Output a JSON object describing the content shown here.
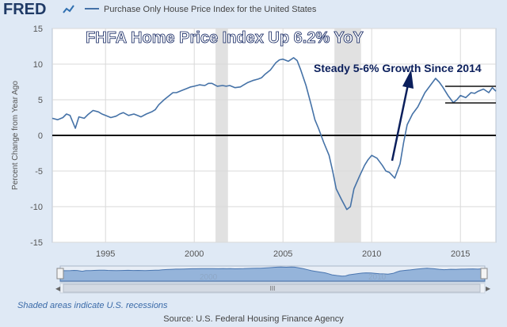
{
  "header": {
    "logo": "FRED",
    "series_label": "Purchase Only House Price Index for the United States"
  },
  "annotations": {
    "headline": "FHFA Home Price Index Up 6.2% YoY",
    "growth_note": "Steady 5-6% Growth Since 2014"
  },
  "footer": {
    "recession_note": "Shaded areas indicate U.S. recessions",
    "source": "Source: U.S. Federal Housing Finance Agency"
  },
  "navigator": {
    "labels": [
      "2000",
      "2010"
    ],
    "handle_left": "◁",
    "handle_right": "▷",
    "scroll_left": "◀",
    "scroll_right": "▶",
    "scroll_grip": "III"
  },
  "colors": {
    "series": "#4572a7",
    "recession": "#e1e1e1",
    "arrow": "#0b1f5c",
    "headline": "#ffffff"
  },
  "chart_data": {
    "type": "line",
    "title": "",
    "xlabel": "",
    "ylabel": "Percent Change from Year Ago",
    "xlim": [
      1992.0,
      2017.0
    ],
    "ylim": [
      -15,
      15
    ],
    "yticks": [
      15,
      10,
      5,
      0,
      -5,
      -10,
      -15
    ],
    "xticks": [
      1995,
      2000,
      2005,
      2010,
      2015
    ],
    "recessions": [
      [
        2001.2,
        2001.9
      ],
      [
        2007.9,
        2009.4
      ]
    ],
    "series": [
      {
        "x": [
          1992.0,
          1992.3,
          1992.6,
          1992.8,
          1993.0,
          1993.3,
          1993.5,
          1993.8,
          1994.0,
          1994.3,
          1994.6,
          1994.8,
          1995.0,
          1995.3,
          1995.6,
          1995.8,
          1996.0,
          1996.3,
          1996.6,
          1996.8,
          1997.0,
          1997.3,
          1997.6,
          1997.8,
          1998.0,
          1998.3,
          1998.6,
          1998.8,
          1999.0,
          1999.3,
          1999.6,
          1999.8,
          2000.0,
          2000.3,
          2000.6,
          2000.8,
          2001.0,
          2001.3,
          2001.6,
          2001.8,
          2002.0,
          2002.3,
          2002.6,
          2002.8,
          2003.0,
          2003.3,
          2003.6,
          2003.8,
          2004.0,
          2004.3,
          2004.6,
          2004.8,
          2005.0,
          2005.3,
          2005.6,
          2005.8,
          2006.0,
          2006.3,
          2006.6,
          2006.8,
          2007.0,
          2007.3,
          2007.6,
          2007.8,
          2008.0,
          2008.3,
          2008.6,
          2008.8,
          2009.0,
          2009.3,
          2009.6,
          2009.8,
          2010.0,
          2010.3,
          2010.6,
          2010.8,
          2011.0,
          2011.3,
          2011.6,
          2011.8,
          2012.0,
          2012.3,
          2012.6,
          2012.8,
          2013.0,
          2013.3,
          2013.6,
          2013.8,
          2014.0,
          2014.3,
          2014.6,
          2014.8,
          2015.0,
          2015.3,
          2015.6,
          2015.8,
          2016.0,
          2016.3,
          2016.6,
          2016.8,
          2017.0
        ],
        "y": [
          2.4,
          2.2,
          2.5,
          3.0,
          2.8,
          1.0,
          2.6,
          2.4,
          2.9,
          3.5,
          3.3,
          3.0,
          2.8,
          2.5,
          2.7,
          3.0,
          3.2,
          2.8,
          3.0,
          2.8,
          2.6,
          3.0,
          3.3,
          3.6,
          4.3,
          5.0,
          5.6,
          6.0,
          6.0,
          6.3,
          6.6,
          6.8,
          6.9,
          7.1,
          7.0,
          7.3,
          7.3,
          6.9,
          7.0,
          6.9,
          7.0,
          6.7,
          6.8,
          7.1,
          7.4,
          7.7,
          7.9,
          8.1,
          8.6,
          9.2,
          10.2,
          10.6,
          10.7,
          10.4,
          10.9,
          10.5,
          9.2,
          7.0,
          4.2,
          2.2,
          1.0,
          -1.0,
          -2.8,
          -5.0,
          -7.5,
          -9.0,
          -10.4,
          -10.0,
          -7.5,
          -5.8,
          -4.2,
          -3.4,
          -2.8,
          -3.2,
          -4.2,
          -5.0,
          -5.2,
          -6.0,
          -4.0,
          -1.0,
          1.5,
          3.0,
          4.0,
          5.0,
          6.0,
          7.0,
          8.0,
          7.5,
          6.8,
          5.6,
          4.6,
          5.0,
          5.6,
          5.3,
          6.0,
          5.9,
          6.2,
          6.5,
          6.0,
          6.7,
          6.2
        ]
      }
    ]
  }
}
